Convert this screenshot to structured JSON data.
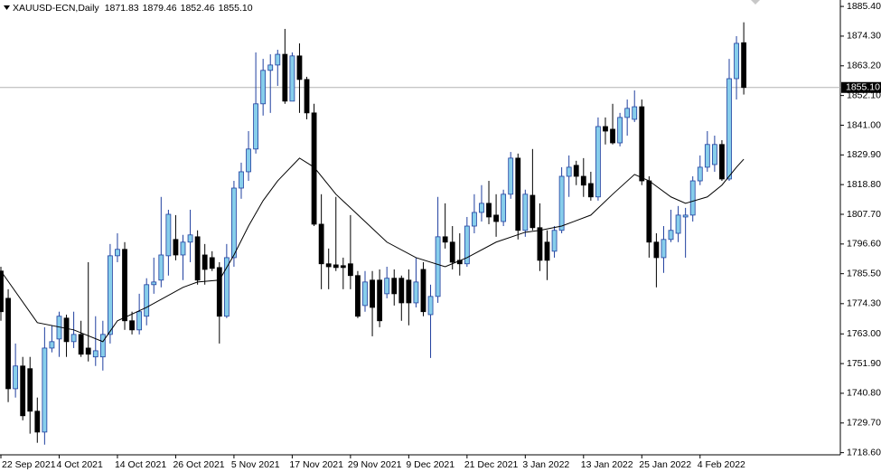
{
  "chart_data": {
    "type": "candlestick",
    "title": "XAUUSD-ECN,Daily",
    "ohlc_labels": [
      "1871.83",
      "1879.46",
      "1852.46",
      "1855.10"
    ],
    "up_color": "#87ceeb",
    "up_line_color": "#1f3f9f",
    "down_color": "#000000",
    "ma_color": "#000000",
    "categories": [
      "22 Sep 2021",
      null,
      null,
      null,
      null,
      null,
      null,
      null,
      "4 Oct 2021",
      null,
      null,
      null,
      null,
      null,
      null,
      null,
      "14 Oct 2021",
      null,
      null,
      null,
      null,
      null,
      null,
      null,
      "26 Oct 2021",
      null,
      null,
      null,
      null,
      null,
      null,
      null,
      "5 Nov 2021",
      null,
      null,
      null,
      null,
      null,
      null,
      null,
      "17 Nov 2021",
      null,
      null,
      null,
      null,
      null,
      null,
      null,
      "29 Nov 2021",
      null,
      null,
      null,
      null,
      null,
      null,
      null,
      "9 Dec 2021",
      null,
      null,
      null,
      null,
      null,
      null,
      null,
      "21 Dec 2021",
      null,
      null,
      null,
      null,
      null,
      null,
      null,
      "3 Jan 2022",
      null,
      null,
      null,
      null,
      null,
      null,
      null,
      "13 Jan 2022",
      null,
      null,
      null,
      null,
      null,
      null,
      null,
      "25 Jan 2022",
      null,
      null,
      null,
      null,
      null,
      null,
      null,
      "4 Feb 2022",
      null,
      null,
      null,
      null,
      null,
      null
    ],
    "open": [
      1786.5,
      1776.3,
      1742.5,
      1751.0,
      1750.0,
      1734.1,
      1726.3,
      1757.7,
      1761.1,
      1768.9,
      1760.1,
      1762.8,
      1757.7,
      1754.4,
      1754.4,
      1762.8,
      1792.2,
      1794.6,
      1767.9,
      1764.5,
      1769.6,
      1781.4,
      1783.1,
      1792.2,
      1798.3,
      1792.5,
      1797.3,
      1799.3,
      1792.5,
      1791.5,
      1787.8,
      1769.6,
      1791.5,
      1817.5,
      1823.6,
      1832.1,
      1849.0,
      1861.5,
      1863.5,
      1867.5,
      1850.0,
      1866.9,
      1858.1,
      1845.6,
      1804.0,
      1789.2,
      1788.8,
      1788.5,
      1789.2,
      1784.8,
      1773.6,
      1783.1,
      1783.1,
      1778.0,
      1783.8,
      1783.8,
      1783.1,
      1774.6,
      1787.1,
      1770.2,
      1777.0,
      1799.3,
      1797.3,
      1790.5,
      1789.2,
      1803.3,
      1808.4,
      1811.8,
      1807.4,
      1805.0,
      1815.2,
      1828.7,
      1801.7,
      1814.8,
      1802.7,
      1797.3,
      1793.9,
      1801.7,
      1821.9,
      1826.0,
      1821.9,
      1819.2,
      1814.2,
      1840.5,
      1839.5,
      1834.4,
      1843.9,
      1843.2,
      1847.9,
      1820.2,
      1797.3,
      1791.5,
      1798.3,
      1800.6,
      1806.7,
      1807.4,
      1820.2,
      1825.3,
      1826.3,
      1833.8,
      1820.9,
      1858.4,
      1871.83
    ],
    "high": [
      1788.1,
      1779.7,
      1759.4,
      1754.4,
      1754.4,
      1739.2,
      1765.5,
      1766.2,
      1771.3,
      1770.2,
      1771.3,
      1767.9,
      1789.8,
      1769.6,
      1767.9,
      1796.6,
      1800.6,
      1797.3,
      1771.3,
      1778.0,
      1783.8,
      1791.5,
      1814.2,
      1809.4,
      1807.4,
      1800.0,
      1809.4,
      1801.7,
      1796.6,
      1793.9,
      1789.8,
      1796.6,
      1820.2,
      1827.0,
      1838.8,
      1868.2,
      1865.8,
      1867.5,
      1869.2,
      1877.0,
      1868.2,
      1871.6,
      1859.1,
      1849.0,
      1815.2,
      1794.9,
      1814.2,
      1791.5,
      1807.4,
      1786.5,
      1786.5,
      1786.5,
      1787.1,
      1788.1,
      1787.1,
      1784.8,
      1787.1,
      1791.5,
      1789.8,
      1781.4,
      1814.2,
      1811.8,
      1803.3,
      1800.6,
      1806.7,
      1815.2,
      1818.6,
      1820.2,
      1815.2,
      1816.9,
      1831.0,
      1830.4,
      1816.9,
      1832.1,
      1811.8,
      1801.7,
      1803.3,
      1825.3,
      1829.7,
      1827.7,
      1828.7,
      1823.6,
      1843.9,
      1843.9,
      1849.0,
      1845.6,
      1850.6,
      1854.0,
      1850.6,
      1821.9,
      1800.6,
      1803.3,
      1809.4,
      1810.8,
      1810.1,
      1821.9,
      1829.7,
      1838.8,
      1837.1,
      1835.4,
      1865.8,
      1874.3,
      1879.46
    ],
    "low": [
      1767.9,
      1737.5,
      1739.2,
      1730.7,
      1725.7,
      1722.3,
      1721.6,
      1756.1,
      1754.4,
      1754.4,
      1757.7,
      1754.4,
      1752.7,
      1751.0,
      1749.3,
      1759.4,
      1789.8,
      1764.5,
      1762.8,
      1762.8,
      1766.2,
      1778.0,
      1780.4,
      1784.8,
      1790.5,
      1783.1,
      1789.8,
      1781.4,
      1781.4,
      1786.5,
      1759.4,
      1768.9,
      1788.1,
      1813.5,
      1820.2,
      1830.4,
      1844.6,
      1845.6,
      1855.7,
      1849.0,
      1850.0,
      1845.6,
      1843.2,
      1803.3,
      1779.7,
      1779.7,
      1786.5,
      1779.7,
      1779.7,
      1768.9,
      1771.3,
      1762.1,
      1765.5,
      1776.3,
      1773.6,
      1767.9,
      1766.2,
      1772.9,
      1769.6,
      1754.0,
      1774.6,
      1794.9,
      1787.1,
      1784.8,
      1788.1,
      1800.6,
      1805.0,
      1804.0,
      1799.3,
      1803.3,
      1813.5,
      1798.3,
      1799.3,
      1801.7,
      1786.5,
      1783.1,
      1791.5,
      1800.6,
      1814.2,
      1818.6,
      1814.2,
      1812.8,
      1812.8,
      1833.8,
      1833.8,
      1833.1,
      1837.1,
      1842.2,
      1818.6,
      1791.5,
      1780.4,
      1785.8,
      1797.3,
      1797.3,
      1791.5,
      1805.0,
      1818.6,
      1823.6,
      1823.6,
      1820.2,
      1820.2,
      1850.6,
      1852.46
    ],
    "close": [
      1771.3,
      1742.5,
      1751.0,
      1732.4,
      1734.1,
      1726.3,
      1757.7,
      1760.1,
      1769.6,
      1760.1,
      1762.8,
      1755.4,
      1755.4,
      1756.7,
      1762.8,
      1792.2,
      1794.6,
      1767.9,
      1764.5,
      1771.3,
      1781.4,
      1782.4,
      1792.5,
      1807.7,
      1792.5,
      1797.3,
      1800.0,
      1783.1,
      1787.1,
      1787.5,
      1769.6,
      1791.5,
      1817.5,
      1823.6,
      1832.1,
      1849.0,
      1861.5,
      1863.5,
      1867.5,
      1850.0,
      1866.9,
      1858.1,
      1845.6,
      1804.0,
      1789.2,
      1788.1,
      1787.8,
      1787.8,
      1784.8,
      1769.6,
      1782.4,
      1772.9,
      1767.9,
      1783.8,
      1778.0,
      1774.6,
      1774.6,
      1782.4,
      1771.3,
      1777.0,
      1799.3,
      1797.3,
      1789.8,
      1789.2,
      1803.3,
      1808.4,
      1811.8,
      1806.7,
      1805.0,
      1815.2,
      1828.7,
      1801.7,
      1815.2,
      1802.7,
      1790.5,
      1790.5,
      1801.7,
      1821.9,
      1825.3,
      1821.9,
      1818.6,
      1814.2,
      1840.5,
      1838.8,
      1834.4,
      1843.9,
      1847.3,
      1847.9,
      1820.2,
      1797.3,
      1791.5,
      1798.3,
      1801.7,
      1807.4,
      1807.4,
      1820.2,
      1825.3,
      1833.8,
      1833.8,
      1820.9,
      1858.4,
      1871.6,
      1855.1
    ],
    "ma": {
      "x": [
        0,
        5,
        10,
        14,
        16,
        20,
        25,
        27,
        30,
        32,
        34,
        36,
        38,
        41,
        43,
        46,
        50,
        53,
        57,
        61,
        64,
        68,
        72,
        74,
        77,
        81,
        84,
        87,
        89,
        92,
        94,
        97,
        99,
        101,
        102
      ],
      "values": [
        1786.5,
        1767.2,
        1764.5,
        1760.1,
        1767.9,
        1772.9,
        1780.4,
        1782.4,
        1783.1,
        1792.5,
        1803.3,
        1812.8,
        1820.2,
        1828.7,
        1825.3,
        1815.2,
        1805.0,
        1797.3,
        1791.5,
        1788.1,
        1791.5,
        1797.3,
        1801.0,
        1801.7,
        1803.3,
        1807.4,
        1815.2,
        1822.6,
        1820.2,
        1814.2,
        1811.8,
        1814.2,
        1818.6,
        1825.3,
        1828.3
      ]
    },
    "current_price": {
      "value": 1855.1,
      "label": "1855.10"
    },
    "ylim": [
      1717.8,
      1887.8
    ],
    "yticks": [
      {
        "value": 1885.4,
        "label": "1885.40"
      },
      {
        "value": 1874.3,
        "label": "1874.30"
      },
      {
        "value": 1863.2,
        "label": "1863.20"
      },
      {
        "value": 1852.1,
        "label": "1852.10"
      },
      {
        "value": 1841.0,
        "label": "1841.00"
      },
      {
        "value": 1829.9,
        "label": "1829.90"
      },
      {
        "value": 1818.8,
        "label": "1818.80"
      },
      {
        "value": 1807.7,
        "label": "1807.70"
      },
      {
        "value": 1796.6,
        "label": "1796.60"
      },
      {
        "value": 1785.5,
        "label": "1785.50"
      },
      {
        "value": 1774.3,
        "label": "1774.30"
      },
      {
        "value": 1763.0,
        "label": "1763.00"
      },
      {
        "value": 1751.9,
        "label": "1751.90"
      },
      {
        "value": 1740.8,
        "label": "1740.80"
      },
      {
        "value": 1729.7,
        "label": "1729.70"
      },
      {
        "value": 1718.6,
        "label": "1718.60"
      }
    ],
    "grid": false
  }
}
